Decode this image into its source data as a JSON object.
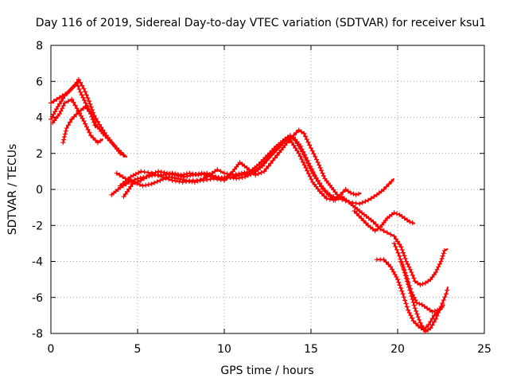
{
  "chart_data": {
    "type": "scatter",
    "title": "Day 116 of 2019, Sidereal Day-to-day VTEC variation (SDTVAR) for receiver ksu1",
    "xlabel": "GPS time / hours",
    "ylabel": "SDTVAR / TECUs",
    "xlim": [
      0,
      25
    ],
    "ylim": [
      -8,
      8
    ],
    "xticks": [
      0,
      5,
      10,
      15,
      20,
      25
    ],
    "yticks": [
      -8,
      -6,
      -4,
      -2,
      0,
      2,
      4,
      6,
      8
    ],
    "grid": true,
    "marker": "+",
    "color": "#ff0000",
    "series": [
      {
        "name": "trace-1",
        "points": [
          [
            0.0,
            3.9
          ],
          [
            0.4,
            4.6
          ],
          [
            0.8,
            5.2
          ],
          [
            1.2,
            5.6
          ],
          [
            1.5,
            5.9
          ],
          [
            1.7,
            5.4
          ],
          [
            2.0,
            4.8
          ],
          [
            2.3,
            4.2
          ],
          [
            2.6,
            3.6
          ],
          [
            3.0,
            3.1
          ],
          [
            3.4,
            2.7
          ],
          [
            3.8,
            2.3
          ],
          [
            4.3,
            1.8
          ]
        ]
      },
      {
        "name": "trace-2",
        "points": [
          [
            0.0,
            4.8
          ],
          [
            0.5,
            5.1
          ],
          [
            1.0,
            5.4
          ],
          [
            1.4,
            5.8
          ],
          [
            1.6,
            6.1
          ],
          [
            1.9,
            5.6
          ],
          [
            2.2,
            4.9
          ],
          [
            2.5,
            4.1
          ],
          [
            2.8,
            3.6
          ],
          [
            3.2,
            3.0
          ],
          [
            3.6,
            2.5
          ],
          [
            4.0,
            2.0
          ],
          [
            4.4,
            1.8
          ]
        ]
      },
      {
        "name": "trace-3",
        "points": [
          [
            0.1,
            3.7
          ],
          [
            0.5,
            4.2
          ],
          [
            0.8,
            4.8
          ],
          [
            1.2,
            5.0
          ],
          [
            1.5,
            4.5
          ],
          [
            1.9,
            3.8
          ],
          [
            2.3,
            3.0
          ],
          [
            2.7,
            2.6
          ],
          [
            3.0,
            2.8
          ]
        ]
      },
      {
        "name": "trace-4",
        "points": [
          [
            0.7,
            2.6
          ],
          [
            0.9,
            3.4
          ],
          [
            1.2,
            3.9
          ],
          [
            1.6,
            4.3
          ],
          [
            2.0,
            4.6
          ],
          [
            2.3,
            4.2
          ],
          [
            2.6,
            3.4
          ]
        ]
      },
      {
        "name": "trace-5",
        "points": [
          [
            3.5,
            -0.3
          ],
          [
            4.0,
            0.1
          ],
          [
            4.5,
            0.4
          ],
          [
            5.0,
            0.6
          ],
          [
            5.5,
            0.7
          ],
          [
            6.0,
            0.8
          ],
          [
            6.5,
            0.8
          ],
          [
            7.0,
            0.9
          ],
          [
            7.5,
            0.8
          ],
          [
            8.0,
            0.9
          ],
          [
            8.5,
            0.8
          ],
          [
            9.0,
            0.9
          ],
          [
            9.5,
            0.7
          ],
          [
            10.0,
            0.6
          ],
          [
            10.5,
            0.7
          ],
          [
            11.0,
            0.8
          ],
          [
            11.5,
            0.9
          ],
          [
            12.0,
            1.2
          ],
          [
            12.5,
            1.7
          ],
          [
            13.0,
            2.2
          ],
          [
            13.5,
            2.7
          ],
          [
            14.0,
            3.0
          ],
          [
            14.3,
            3.3
          ],
          [
            14.6,
            3.1
          ],
          [
            15.0,
            2.3
          ],
          [
            15.4,
            1.5
          ],
          [
            15.8,
            0.6
          ],
          [
            16.2,
            0.1
          ],
          [
            16.6,
            -0.4
          ]
        ]
      },
      {
        "name": "trace-6",
        "points": [
          [
            3.8,
            0.9
          ],
          [
            4.3,
            0.6
          ],
          [
            4.8,
            0.4
          ],
          [
            5.3,
            0.2
          ],
          [
            5.8,
            0.3
          ],
          [
            6.3,
            0.5
          ],
          [
            6.8,
            0.7
          ],
          [
            7.3,
            0.6
          ],
          [
            7.8,
            0.5
          ],
          [
            8.3,
            0.4
          ],
          [
            8.8,
            0.6
          ],
          [
            9.3,
            0.9
          ],
          [
            9.6,
            1.1
          ],
          [
            10.0,
            0.9
          ],
          [
            10.5,
            0.8
          ],
          [
            11.0,
            0.9
          ],
          [
            11.5,
            1.0
          ],
          [
            12.0,
            1.4
          ],
          [
            12.5,
            1.9
          ],
          [
            13.0,
            2.4
          ],
          [
            13.5,
            2.8
          ],
          [
            13.8,
            3.0
          ],
          [
            14.1,
            2.7
          ],
          [
            14.5,
            2.1
          ],
          [
            14.9,
            1.3
          ],
          [
            15.3,
            0.6
          ],
          [
            15.7,
            0.0
          ],
          [
            16.1,
            -0.3
          ],
          [
            16.5,
            -0.5
          ]
        ]
      },
      {
        "name": "trace-7",
        "points": [
          [
            4.0,
            0.2
          ],
          [
            4.6,
            0.7
          ],
          [
            5.2,
            1.0
          ],
          [
            5.8,
            0.9
          ],
          [
            6.4,
            0.7
          ],
          [
            7.0,
            0.5
          ],
          [
            7.6,
            0.4
          ],
          [
            8.2,
            0.5
          ],
          [
            8.8,
            0.5
          ],
          [
            9.4,
            0.6
          ],
          [
            10.0,
            0.5
          ],
          [
            10.5,
            1.0
          ],
          [
            10.9,
            1.5
          ],
          [
            11.3,
            1.2
          ],
          [
            11.8,
            0.8
          ],
          [
            12.3,
            1.0
          ],
          [
            12.8,
            1.6
          ],
          [
            13.3,
            2.2
          ],
          [
            13.7,
            2.7
          ],
          [
            14.0,
            2.9
          ],
          [
            14.4,
            2.4
          ],
          [
            14.8,
            1.6
          ],
          [
            15.2,
            0.8
          ],
          [
            15.6,
            0.2
          ],
          [
            16.0,
            -0.3
          ],
          [
            16.4,
            -0.6
          ],
          [
            16.8,
            -0.4
          ]
        ]
      },
      {
        "name": "trace-8",
        "points": [
          [
            4.2,
            -0.4
          ],
          [
            4.7,
            0.3
          ],
          [
            5.2,
            0.5
          ],
          [
            5.7,
            0.8
          ],
          [
            6.2,
            1.0
          ],
          [
            6.7,
            0.9
          ],
          [
            7.2,
            0.8
          ],
          [
            7.7,
            0.7
          ],
          [
            8.2,
            0.8
          ],
          [
            8.7,
            0.9
          ],
          [
            9.2,
            0.7
          ],
          [
            9.7,
            0.6
          ],
          [
            10.2,
            0.7
          ],
          [
            10.7,
            0.6
          ],
          [
            11.2,
            0.7
          ],
          [
            11.7,
            0.9
          ],
          [
            12.2,
            1.3
          ],
          [
            12.7,
            1.9
          ],
          [
            13.2,
            2.4
          ],
          [
            13.6,
            2.8
          ],
          [
            13.9,
            2.6
          ],
          [
            14.3,
            2.0
          ],
          [
            14.7,
            1.2
          ],
          [
            15.1,
            0.4
          ],
          [
            15.5,
            -0.1
          ],
          [
            15.9,
            -0.5
          ],
          [
            16.3,
            -0.6
          ],
          [
            16.7,
            -0.3
          ],
          [
            17.0,
            0.0
          ],
          [
            17.3,
            -0.2
          ],
          [
            17.6,
            -0.3
          ],
          [
            17.9,
            -0.2
          ]
        ]
      },
      {
        "name": "trace-9",
        "points": [
          [
            16.6,
            -0.5
          ],
          [
            17.2,
            -0.7
          ],
          [
            17.8,
            -0.8
          ],
          [
            18.3,
            -0.6
          ],
          [
            18.8,
            -0.3
          ],
          [
            19.2,
            0.0
          ],
          [
            19.5,
            0.3
          ],
          [
            19.8,
            0.6
          ]
        ]
      },
      {
        "name": "trace-10",
        "points": [
          [
            16.8,
            -0.4
          ],
          [
            17.3,
            -0.8
          ],
          [
            17.8,
            -1.2
          ],
          [
            18.2,
            -1.5
          ],
          [
            18.6,
            -1.8
          ],
          [
            19.0,
            -2.2
          ],
          [
            19.4,
            -2.4
          ],
          [
            19.8,
            -2.6
          ],
          [
            20.2,
            -3.2
          ],
          [
            20.5,
            -4.0
          ],
          [
            20.8,
            -4.6
          ],
          [
            21.0,
            -5.1
          ],
          [
            21.3,
            -5.3
          ],
          [
            21.6,
            -5.2
          ],
          [
            21.9,
            -5.0
          ],
          [
            22.2,
            -4.6
          ],
          [
            22.5,
            -4.0
          ],
          [
            22.7,
            -3.4
          ],
          [
            22.9,
            -3.3
          ]
        ]
      },
      {
        "name": "trace-11",
        "points": [
          [
            17.5,
            -1.2
          ],
          [
            17.9,
            -1.6
          ],
          [
            18.3,
            -2.0
          ],
          [
            18.7,
            -2.3
          ],
          [
            19.0,
            -2.1
          ],
          [
            19.4,
            -1.6
          ],
          [
            19.8,
            -1.3
          ],
          [
            20.1,
            -1.4
          ],
          [
            20.4,
            -1.6
          ],
          [
            20.7,
            -1.8
          ],
          [
            21.0,
            -1.9
          ]
        ]
      },
      {
        "name": "trace-12",
        "points": [
          [
            18.8,
            -3.9
          ],
          [
            19.2,
            -3.9
          ],
          [
            19.6,
            -4.3
          ],
          [
            20.0,
            -5.0
          ],
          [
            20.3,
            -5.8
          ],
          [
            20.6,
            -6.7
          ],
          [
            20.9,
            -7.3
          ],
          [
            21.2,
            -7.6
          ],
          [
            21.5,
            -7.8
          ],
          [
            21.8,
            -7.5
          ],
          [
            22.1,
            -7.0
          ],
          [
            22.4,
            -6.7
          ],
          [
            22.7,
            -6.4
          ]
        ]
      },
      {
        "name": "trace-13",
        "points": [
          [
            19.8,
            -3.0
          ],
          [
            20.1,
            -3.7
          ],
          [
            20.4,
            -4.6
          ],
          [
            20.7,
            -5.6
          ],
          [
            21.0,
            -6.6
          ],
          [
            21.3,
            -7.4
          ],
          [
            21.6,
            -7.9
          ],
          [
            21.9,
            -7.7
          ],
          [
            22.2,
            -7.2
          ],
          [
            22.5,
            -6.5
          ],
          [
            22.8,
            -5.8
          ],
          [
            22.9,
            -5.4
          ]
        ]
      },
      {
        "name": "trace-14",
        "points": [
          [
            20.2,
            -4.0
          ],
          [
            20.5,
            -4.8
          ],
          [
            20.8,
            -5.7
          ],
          [
            21.1,
            -6.3
          ],
          [
            21.4,
            -6.4
          ],
          [
            21.7,
            -6.6
          ],
          [
            22.0,
            -6.8
          ],
          [
            22.3,
            -6.7
          ],
          [
            22.6,
            -6.6
          ]
        ]
      }
    ]
  }
}
